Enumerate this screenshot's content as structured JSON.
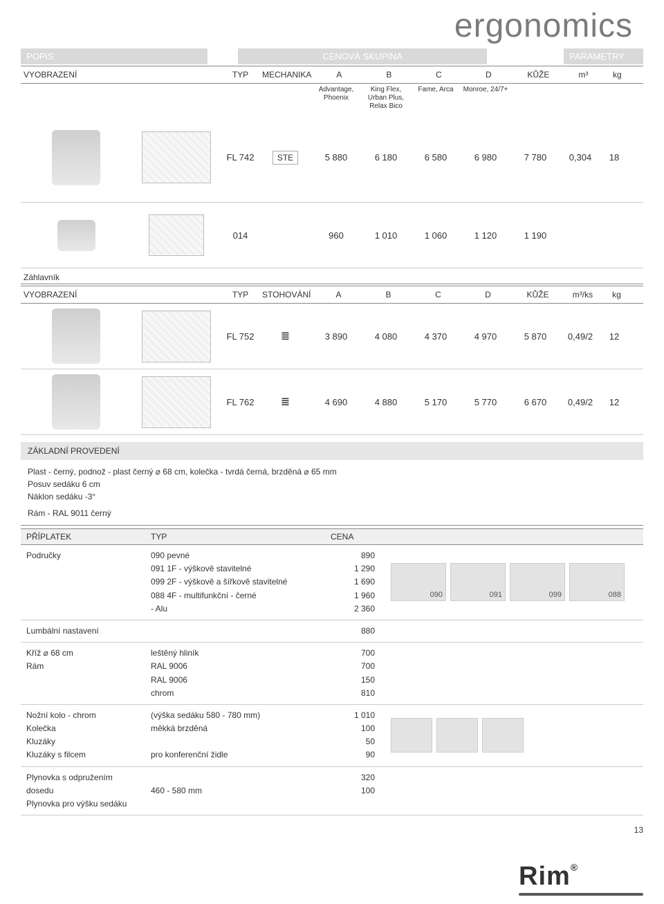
{
  "title": "ergonomics",
  "section_headers": {
    "popis": "POPIS",
    "cenova": "CENOVÁ SKUPINA",
    "param": "PARAMETRY"
  },
  "cols": {
    "vyob": "VYOBRAZENÍ",
    "typ": "TYP",
    "mech": "MECHANIKA",
    "a": "A",
    "b": "B",
    "c": "C",
    "d": "D",
    "kuze": "KŮŽE",
    "m3": "m³",
    "kg": "kg"
  },
  "sub": {
    "a": "Advantage, Phoenix",
    "b": "King Flex, Urban Plus, Relax Bico",
    "c": "Fame, Arca",
    "d": "Monroe, 24/7+"
  },
  "row1": {
    "typ": "FL 742",
    "mech": "STE",
    "a": "5 880",
    "b": "6 180",
    "c": "6 580",
    "d": "6 980",
    "kuze": "7 780",
    "m3": "0,304",
    "kg": "18"
  },
  "row2": {
    "typ": "014",
    "a": "960",
    "b": "1 010",
    "c": "1 060",
    "d": "1 120",
    "kuze": "1 190"
  },
  "zahlavnik": "Záhlavník",
  "cols2": {
    "vyob": "VYOBRAZENÍ",
    "typ": "TYP",
    "stoh": "STOHOVÁNÍ",
    "a": "A",
    "b": "B",
    "c": "C",
    "d": "D",
    "kuze": "KŮŽE",
    "m3ks": "m³/ks",
    "kg": "kg"
  },
  "row3": {
    "typ": "FL 752",
    "a": "3 890",
    "b": "4 080",
    "c": "4 370",
    "d": "4 970",
    "kuze": "5 870",
    "m3": "0,49/2",
    "kg": "12"
  },
  "row4": {
    "typ": "FL 762",
    "a": "4 690",
    "b": "4 880",
    "c": "5 170",
    "d": "5 770",
    "kuze": "6 670",
    "m3": "0,49/2",
    "kg": "12"
  },
  "zaklad_head": "ZÁKLADNÍ PROVEDENÍ",
  "zaklad_lines": [
    "Plast - černý, podnož - plast černý ⌀ 68 cm, kolečka - tvrdá černá, brzděná ⌀ 65 mm",
    "Posuv sedáku 6 cm",
    "Náklon sedáku -3°",
    "Rám - RAL 9011 černý"
  ],
  "pripl": {
    "h1": "PŘÍPLATEK",
    "h2": "TYP",
    "h3": "CENA"
  },
  "options": [
    {
      "name": "Područky",
      "sub": [
        {
          "label": "090 pevné",
          "price": "890"
        },
        {
          "label": "091 1F - výškově stavitelné",
          "price": "1 290"
        },
        {
          "label": "099 2F - výškově a šířkově stavitelné",
          "price": "1 690"
        },
        {
          "label": "088 4F - multifunkční - černé",
          "price": "1 960"
        },
        {
          "label": "            - Alu",
          "price": "2 360"
        }
      ],
      "thumbs": [
        "090",
        "091",
        "099",
        "088"
      ]
    },
    {
      "name": "Lumbální nastavení",
      "sub": [
        {
          "label": "",
          "price": "880"
        }
      ]
    },
    {
      "name": "Kříž ⌀ 68 cm\nRám",
      "sub": [
        {
          "label": "leštěný hliník",
          "price": "700"
        },
        {
          "label": "RAL 9006",
          "price": "700"
        },
        {
          "label": "RAL 9006",
          "price": "150"
        },
        {
          "label": "chrom",
          "price": "810"
        }
      ]
    },
    {
      "name": "Nožní kolo - chrom\nKolečka\nKluzáky\nKluzáky s filcem",
      "sub": [
        {
          "label": "(výška sedáku 580 - 780 mm)",
          "price": "1 010"
        },
        {
          "label": "měkká brzděná",
          "price": "100"
        },
        {
          "label": "",
          "price": "50"
        },
        {
          "label": "pro konferenční židle",
          "price": "90"
        }
      ],
      "thumbs2": true
    },
    {
      "name": "Plynovka s odpružením dosedu\nPlynovka pro výšku sedáku",
      "sub": [
        {
          "label": "",
          "price": "320"
        },
        {
          "label": "460 - 580 mm",
          "price": "100"
        }
      ]
    }
  ],
  "page_num": "13",
  "logo": "Rim"
}
